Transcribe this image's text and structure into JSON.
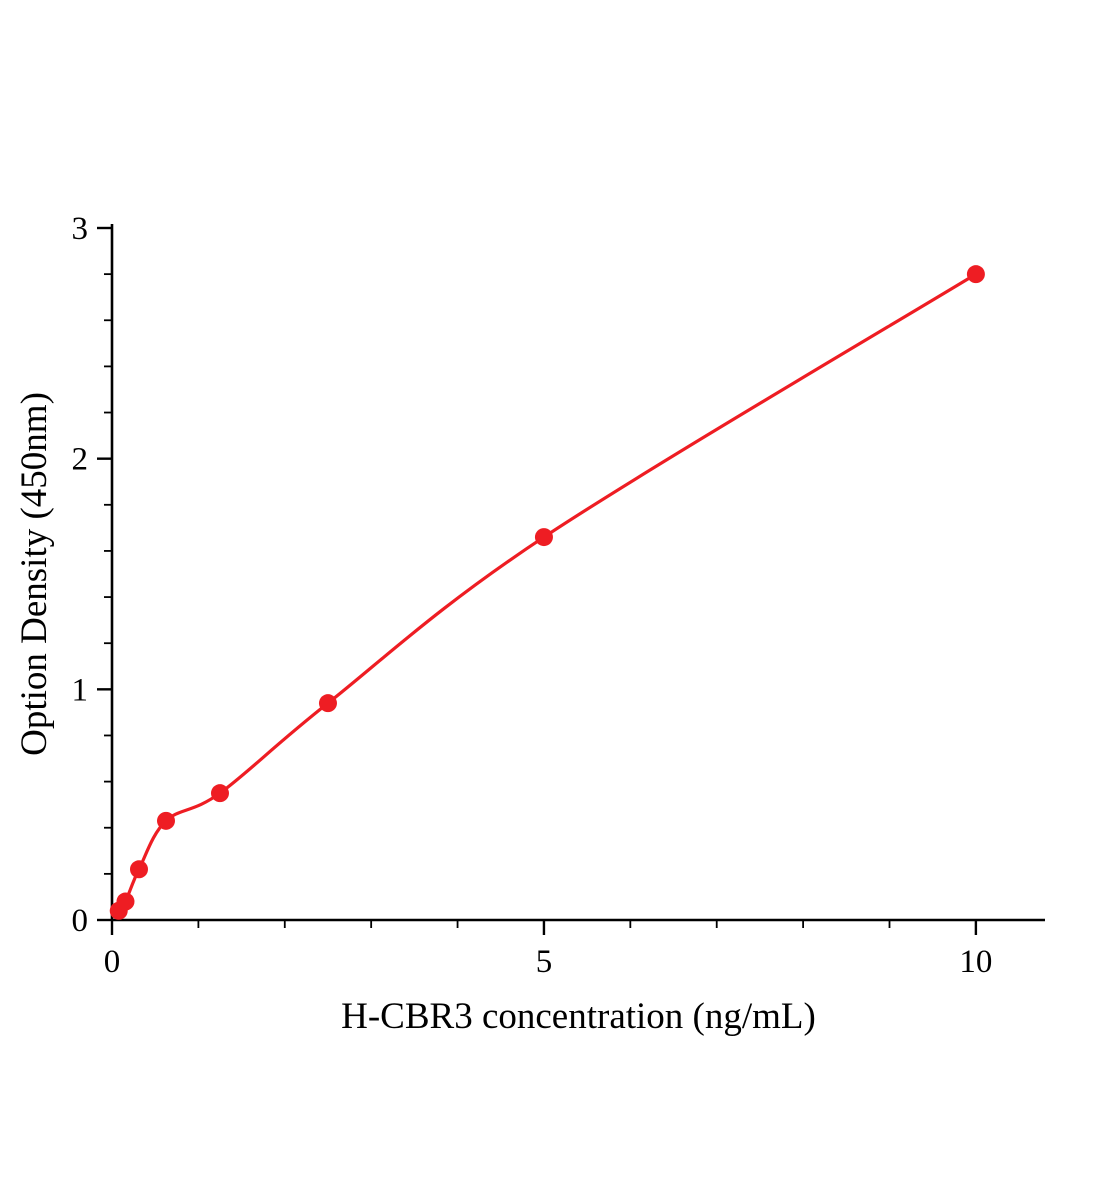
{
  "figure": {
    "background": "#ffffff"
  },
  "chart_data": {
    "type": "scatter",
    "title": "",
    "xlabel": "H-CBR3 concentration (ng/mL)",
    "ylabel": "Option Density (450nm)",
    "x": [
      0.078,
      0.156,
      0.3125,
      0.625,
      1.25,
      2.5,
      5,
      10
    ],
    "y": [
      0.04,
      0.08,
      0.22,
      0.43,
      0.55,
      0.94,
      1.66,
      2.8
    ],
    "fit_curve": "smooth monotonic fit through points",
    "xlim": [
      0,
      10.8
    ],
    "ylim": [
      0,
      3
    ],
    "xticks": [
      0,
      5,
      10
    ],
    "yticks": [
      0,
      1,
      2,
      3
    ],
    "x_minor_step": 1,
    "y_minor_step": 0.2,
    "grid": false,
    "legend_position": "none",
    "point_color": "#ee1d23",
    "line_color": "#ee1d23",
    "axis_color": "#000000"
  }
}
